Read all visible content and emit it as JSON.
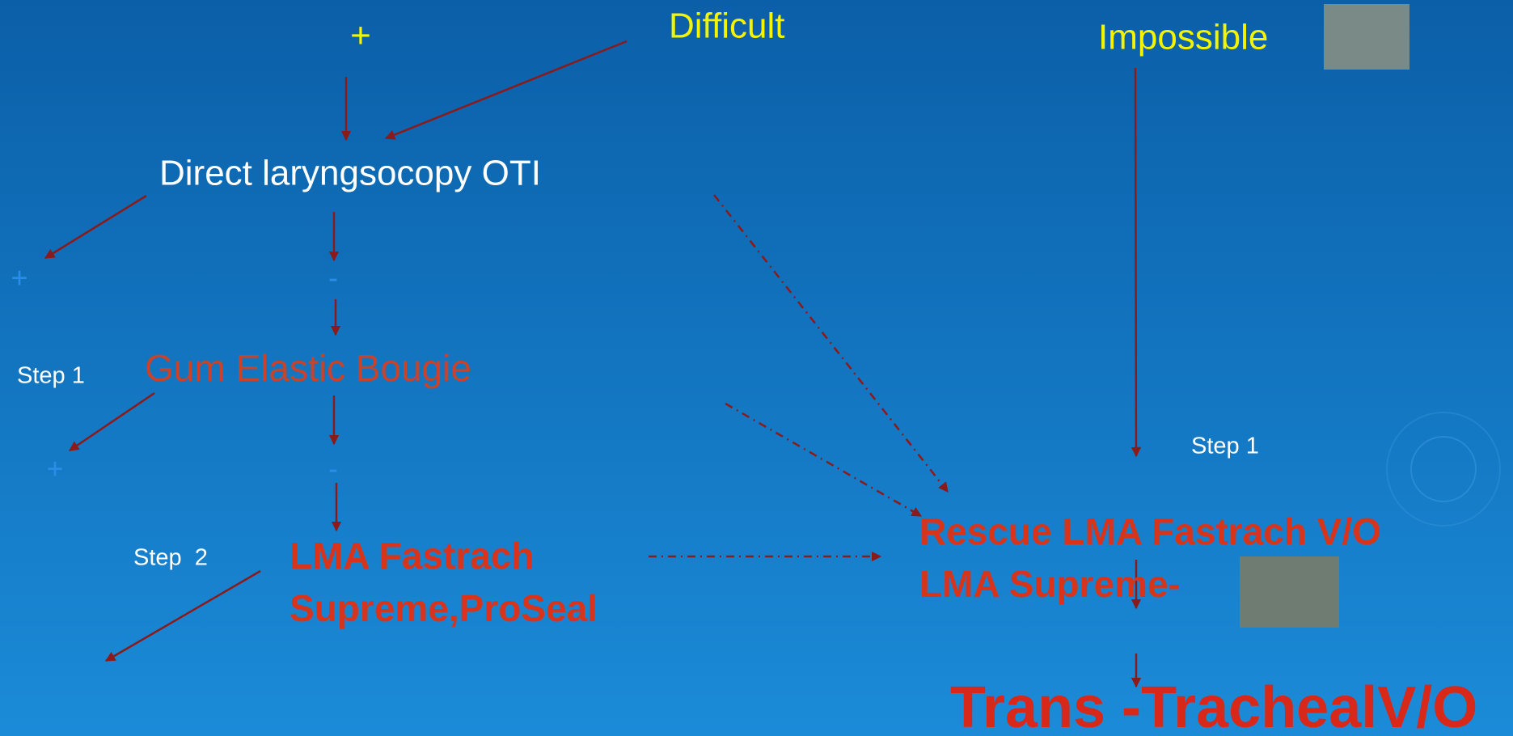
{
  "top": {
    "plus": "+",
    "difficult": "Difficult",
    "impossible": "Impossible"
  },
  "left": {
    "direct": "Direct laryngsocopy OTI",
    "plus1": "+",
    "minus1": "-",
    "step1": "Step 1",
    "bougie": "Gum Elastic Bougie",
    "plus2": "+",
    "minus2": "-",
    "step2": "Step  2",
    "lma1": "LMA Fastrach",
    "lma2": "Supreme,ProSeal"
  },
  "right": {
    "step1": "Step 1",
    "rescue1": "Rescue LMA Fastrach V/O",
    "rescue2": "LMA Supreme-",
    "trans": "Trans -TrachealV/O"
  }
}
